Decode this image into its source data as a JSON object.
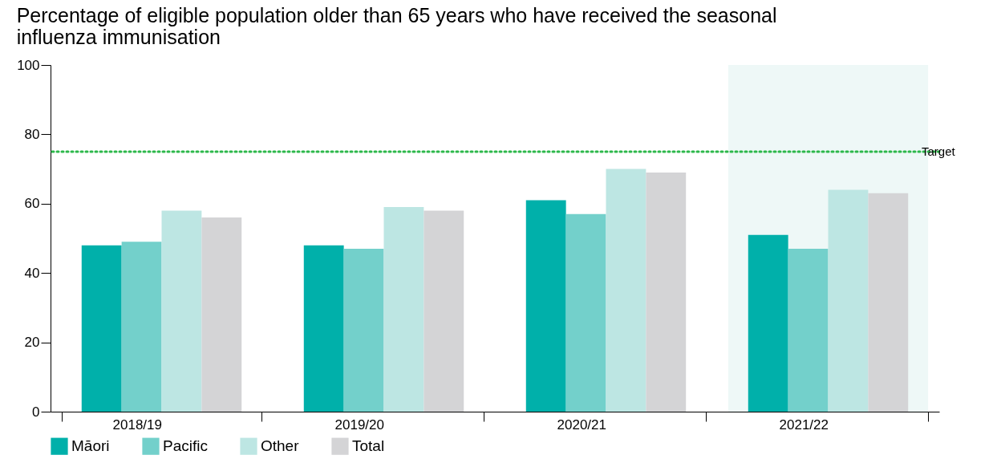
{
  "chart_data": {
    "type": "bar",
    "title": "Percentage of eligible population older than 65 years who have received the seasonal influenza immunisation",
    "categories": [
      "2018/19",
      "2019/20",
      "2020/21",
      "2021/22"
    ],
    "series": [
      {
        "name": "Māori",
        "color": "#00b0aa",
        "values": [
          48,
          48,
          61,
          51
        ]
      },
      {
        "name": "Pacific",
        "color": "#73d0cb",
        "values": [
          49,
          47,
          57,
          47
        ]
      },
      {
        "name": "Other",
        "color": "#bde6e3",
        "values": [
          58,
          59,
          70,
          64
        ]
      },
      {
        "name": "Total",
        "color": "#d4d4d6",
        "values": [
          56,
          58,
          69,
          63
        ]
      }
    ],
    "ylim": [
      0,
      100
    ],
    "yticks": [
      0,
      20,
      40,
      60,
      80,
      100
    ],
    "grid": false,
    "legend": "bottom",
    "ref_lines": [
      {
        "axis": "y",
        "value": 75,
        "label": "Target",
        "color": "#2db84b",
        "line_style": "dotted"
      }
    ],
    "bands": [
      {
        "axis": "x",
        "from": "2021/22",
        "to": "2021/22",
        "color": "#eef8f7"
      }
    ]
  }
}
